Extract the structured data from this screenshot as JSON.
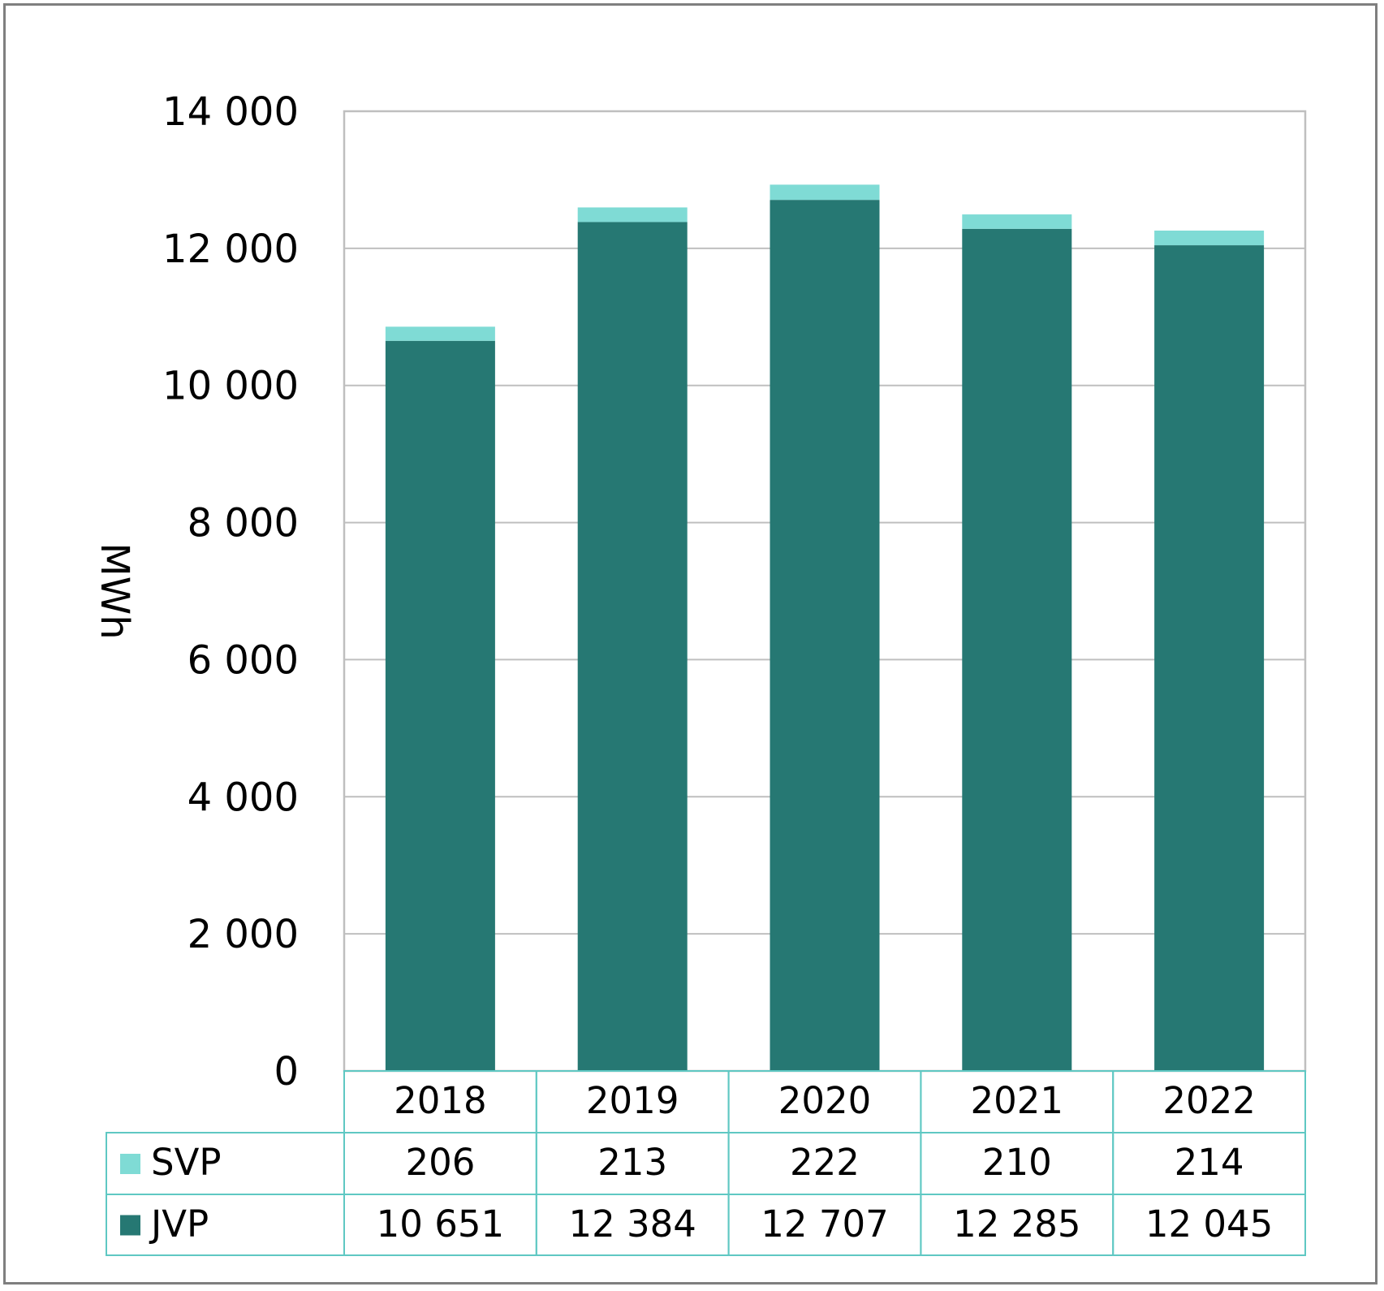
{
  "chart_data": {
    "type": "bar",
    "stacked": true,
    "categories": [
      "2018",
      "2019",
      "2020",
      "2021",
      "2022"
    ],
    "series": [
      {
        "name": "JVP",
        "values": [
          10651,
          12384,
          12707,
          12285,
          12045
        ],
        "color": "#267873",
        "display_values": [
          "10 651",
          "12 384",
          "12 707",
          "12 285",
          "12 045"
        ]
      },
      {
        "name": "SVP",
        "values": [
          206,
          213,
          222,
          210,
          214
        ],
        "color": "#7fdbd5",
        "display_values": [
          "206",
          "213",
          "222",
          "210",
          "214"
        ]
      }
    ],
    "ylabel": "MWh",
    "ylim": [
      0,
      14000
    ],
    "yticks": [
      0,
      2000,
      4000,
      6000,
      8000,
      10000,
      12000,
      14000
    ],
    "ytick_labels": [
      "0",
      "2 000",
      "4 000",
      "6 000",
      "8 000",
      "10 000",
      "12 000",
      "14 000"
    ],
    "grid": true,
    "legend": "data-table",
    "table_border_color": "#5fc8c3",
    "grid_color": "#bfbfbf"
  }
}
